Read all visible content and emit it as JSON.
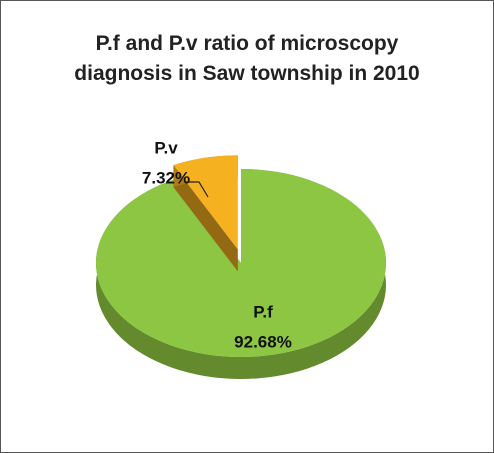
{
  "chart_data": {
    "type": "pie",
    "title": "P.f and P.v ratio of microscopy diagnosis in  Saw township in 2010",
    "categories": [
      "P.f",
      "P.v"
    ],
    "values": [
      92.68,
      7.32
    ],
    "value_labels": [
      "92.68%",
      "7.32%"
    ],
    "colors": [
      "#8dc642",
      "#f5b11f"
    ]
  }
}
